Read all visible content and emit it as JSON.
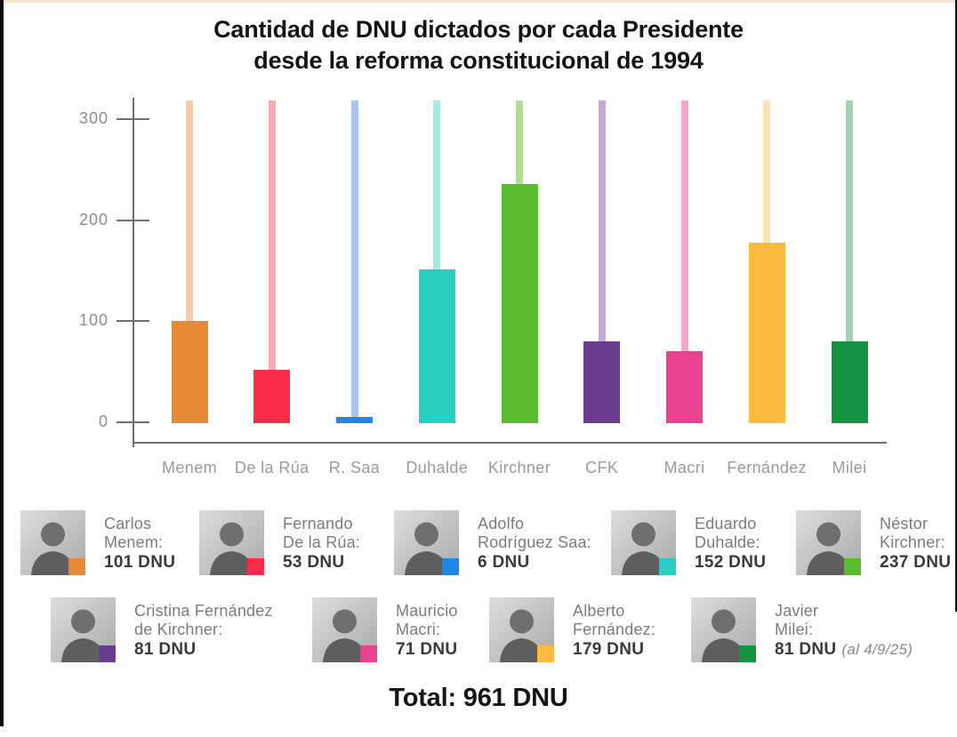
{
  "title": {
    "line1": "Cantidad de DNU dictados por cada Presidente",
    "line2": "desde la reforma constitucional de 1994"
  },
  "chart_data": {
    "type": "bar",
    "title": "Cantidad de DNU dictados por cada Presidente desde la reforma constitucional de 1994",
    "categories": [
      "Menem",
      "De la Rúa",
      "R. Saa",
      "Duhalde",
      "Kirchner",
      "CFK",
      "Macri",
      "Fernández",
      "Milei"
    ],
    "values": [
      101,
      53,
      6,
      152,
      237,
      81,
      71,
      179,
      81
    ],
    "bar_colors": [
      "#e78a35",
      "#fb2c47",
      "#1f87e5",
      "#2bcfc1",
      "#5abb2d",
      "#6b3d91",
      "#e84391",
      "#fbba40",
      "#149343"
    ],
    "stem_colors": [
      "#f8cba8",
      "#f9abb2",
      "#a3c9f3",
      "#a5e9e2",
      "#b4de97",
      "#c2aad4",
      "#f4a9ca",
      "#fde2ac",
      "#a6d3b2"
    ],
    "yticks": [
      0,
      100,
      200,
      300
    ],
    "ylim": [
      0,
      320
    ],
    "xlabel": "",
    "ylabel": "",
    "grid": false,
    "legend_position": "bottom",
    "note": "Light stems extend from each bar top to the top of the plot area"
  },
  "legend": {
    "rows": [
      [
        {
          "name_lines": [
            "Carlos",
            "Menem:"
          ],
          "value": "101 DNU",
          "note": "",
          "color": "#e78a35"
        },
        {
          "name_lines": [
            "Fernando",
            "De la Rúa:"
          ],
          "value": "53 DNU",
          "note": "",
          "color": "#fb2c47"
        },
        {
          "name_lines": [
            "Adolfo",
            "Rodríguez Saa:"
          ],
          "value": "6 DNU",
          "note": "",
          "color": "#1f87e5"
        },
        {
          "name_lines": [
            "Eduardo",
            "Duhalde:"
          ],
          "value": "152 DNU",
          "note": "",
          "color": "#2bcfc1"
        },
        {
          "name_lines": [
            "Néstor",
            "Kirchner:"
          ],
          "value": "237 DNU",
          "note": "",
          "color": "#5abb2d"
        }
      ],
      [
        {
          "name_lines": [
            "Cristina Fernández",
            "de Kirchner:"
          ],
          "value": "81 DNU",
          "note": "",
          "color": "#6b3d91"
        },
        {
          "name_lines": [
            "Mauricio",
            "Macri:"
          ],
          "value": "71 DNU",
          "note": "",
          "color": "#e84391"
        },
        {
          "name_lines": [
            "Alberto",
            "Fernández:"
          ],
          "value": "179 DNU",
          "note": "",
          "color": "#fbba40"
        },
        {
          "name_lines": [
            "Javier",
            "Milei:"
          ],
          "value": "81 DNU",
          "note": "(al 4/9/25)",
          "color": "#149343"
        }
      ]
    ]
  },
  "total": {
    "label": "Total: 961 DNU"
  }
}
